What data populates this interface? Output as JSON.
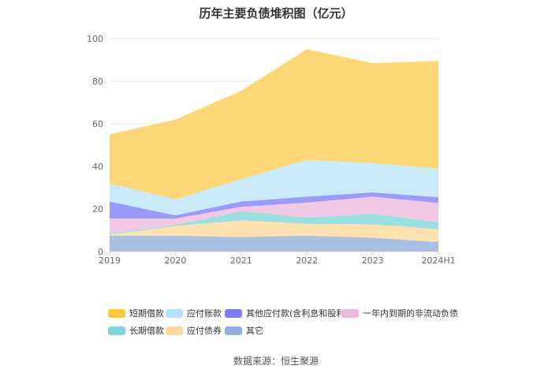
{
  "chart_data": {
    "type": "area",
    "stacked": true,
    "title": "历年主要负债堆积图（亿元）",
    "categories": [
      "2019",
      "2020",
      "2021",
      "2022",
      "2023",
      "2024H1"
    ],
    "ylim": [
      0,
      100
    ],
    "yticks": [
      0,
      20,
      40,
      60,
      80,
      100
    ],
    "grid": true,
    "legend_position": "bottom",
    "series": [
      {
        "name": "其它",
        "color": "#a9bfe3",
        "values": [
          7.5,
          7.5,
          6.8,
          7.5,
          6.5,
          4.5
        ]
      },
      {
        "name": "应付债券",
        "color": "#fde1ae",
        "values": [
          0.5,
          4.5,
          7.8,
          5.5,
          6.3,
          6.0
        ]
      },
      {
        "name": "长期借款",
        "color": "#9cdfe1",
        "values": [
          0.5,
          0.5,
          4.4,
          3.0,
          5.0,
          3.3
        ]
      },
      {
        "name": "一年内到期的非流动负债",
        "color": "#f2c9e2",
        "values": [
          7.0,
          3.0,
          2.0,
          7.0,
          8.0,
          9.0
        ]
      },
      {
        "name": "其他应付款(含利息和股利)",
        "color": "#9a9af8",
        "values": [
          8.0,
          1.5,
          2.5,
          2.8,
          2.0,
          2.7
        ]
      },
      {
        "name": "应付账款",
        "color": "#c8eafb",
        "values": [
          8.5,
          7.5,
          10.5,
          17.2,
          13.7,
          13.5
        ]
      },
      {
        "name": "短期借款",
        "color": "#fdd678",
        "values": [
          23.0,
          37.5,
          41.5,
          52.0,
          47.0,
          50.5
        ]
      }
    ],
    "legend_order": [
      "短期借款",
      "应付账款",
      "其他应付款(含利息和股利)",
      "一年内到期的非流动负债",
      "长期借款",
      "应付债券",
      "其它"
    ],
    "legend_colors": {
      "短期借款": "#fcc63e",
      "应付账款": "#b3e3fa",
      "其他应付款(含利息和股利)": "#7f7ff0",
      "一年内到期的非流动负债": "#ebb9d9",
      "长期借款": "#7fd5d8",
      "应付债券": "#fdd9a0",
      "其它": "#92aede"
    }
  },
  "source_text": "数据来源：恒生聚源"
}
